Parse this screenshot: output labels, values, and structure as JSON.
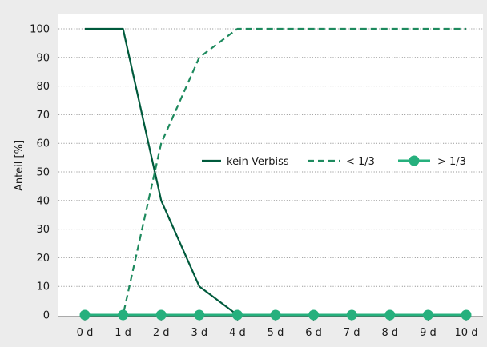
{
  "chart_data": {
    "type": "line",
    "categories": [
      "0 d",
      "1 d",
      "2 d",
      "3 d",
      "4 d",
      "5 d",
      "6 d",
      "7 d",
      "8 d",
      "9 d",
      "10 d"
    ],
    "ylabel": "Anteil [%]",
    "xlabel": "",
    "ylim": [
      0,
      100
    ],
    "yticks": [
      0,
      10,
      20,
      30,
      40,
      50,
      60,
      70,
      80,
      90,
      100
    ],
    "grid": true,
    "legend_position": "center-right",
    "series": [
      {
        "name": "kein Verbiss",
        "style": "solid",
        "marker": "none",
        "color": "#005a3c",
        "values": [
          100,
          100,
          40,
          10,
          0,
          null,
          null,
          null,
          null,
          null,
          null
        ]
      },
      {
        "name": "< 1/3",
        "style": "dashed",
        "marker": "none",
        "color": "#1e8a5e",
        "values": [
          0,
          0,
          60,
          90,
          100,
          100,
          100,
          100,
          100,
          100,
          100
        ]
      },
      {
        "name": "> 1/3",
        "style": "solid",
        "marker": "circle",
        "color": "#26b07d",
        "values": [
          0,
          0,
          0,
          0,
          0,
          0,
          0,
          0,
          0,
          0,
          0
        ]
      }
    ]
  }
}
